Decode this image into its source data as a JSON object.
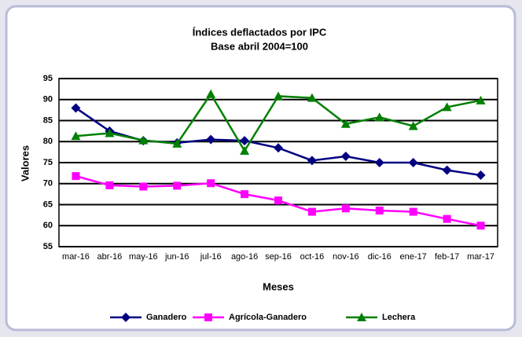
{
  "chart_data": {
    "type": "line",
    "title": "Índices deflactados por IPC",
    "subtitle": "Base abril 2004=100",
    "x_label": "Meses",
    "y_label": "Valores",
    "categories": [
      "mar-16",
      "abr-16",
      "may-16",
      "jun-16",
      "jul-16",
      "ago-16",
      "sep-16",
      "oct-16",
      "nov-16",
      "dic-16",
      "ene-17",
      "feb-17",
      "mar-17"
    ],
    "series": [
      {
        "name": "Ganadero",
        "color": "#000080",
        "marker": "diamond",
        "values": [
          88,
          82.5,
          80.2,
          79.7,
          80.5,
          80.2,
          78.5,
          75.5,
          76.5,
          75,
          75,
          73.2,
          72
        ]
      },
      {
        "name": "Agrícola-Ganadero",
        "color": "#ff00ff",
        "marker": "square",
        "values": [
          71.8,
          69.6,
          69.3,
          69.5,
          70.1,
          67.5,
          66,
          63.3,
          64.1,
          63.6,
          63.3,
          61.6,
          60
        ]
      },
      {
        "name": "Lechera",
        "color": "#008000",
        "marker": "triangle",
        "values": [
          81.3,
          82,
          80.3,
          79.5,
          91.3,
          77.8,
          90.8,
          90.4,
          84.2,
          85.8,
          83.7,
          88.2,
          89.8
        ]
      }
    ],
    "ylim": [
      55,
      95
    ],
    "yticks": [
      55,
      60,
      65,
      70,
      75,
      80,
      85,
      90,
      95
    ],
    "grid": true,
    "legend": "bottom"
  }
}
